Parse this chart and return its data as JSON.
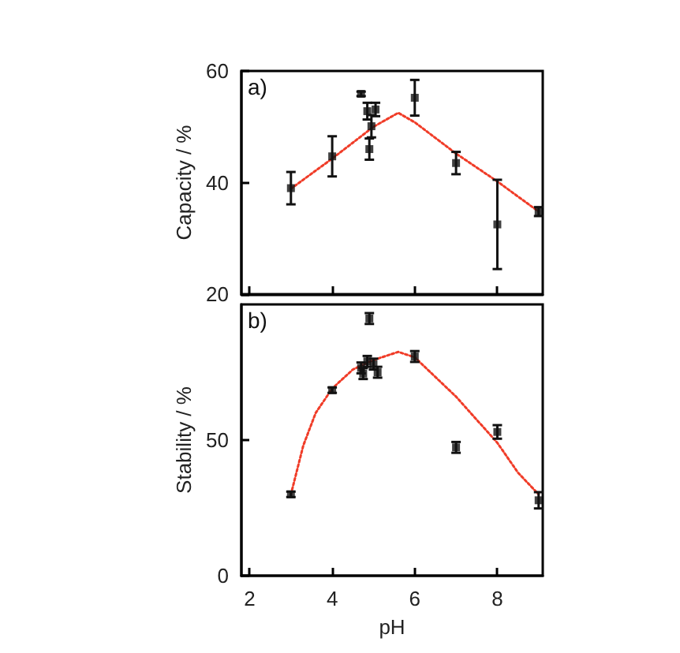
{
  "chart_data": [
    {
      "type": "scatter",
      "ylabel": "Capacity / %",
      "annotations": [
        "a)"
      ],
      "xlim": [
        1.8,
        9.1
      ],
      "xticks": [
        2,
        4,
        6,
        8
      ],
      "ylim": [
        20,
        60
      ],
      "yticks": [
        20,
        40,
        60
      ],
      "tick_labels": "y",
      "marker": "square",
      "series": [
        {
          "color": "#111111",
          "x": [
            3,
            4,
            4.7,
            4.85,
            4.9,
            4.95,
            5.05,
            6,
            7,
            8,
            9
          ],
          "values": [
            39,
            44.7,
            55.9,
            52.8,
            46,
            50.1,
            53.1,
            55.2,
            43.5,
            32.5,
            34.8
          ],
          "errors": [
            2.9,
            3.6,
            0.4,
            1.5,
            1.9,
            2,
            1.2,
            3.2,
            2,
            8,
            0.8
          ]
        },
        {
          "type": "line",
          "color": "#f03c28",
          "marker": "none",
          "line_style": "dotted",
          "x": [
            3,
            4,
            5,
            5.6,
            6,
            7,
            8,
            9
          ],
          "values": [
            38.9,
            44.3,
            50,
            52.5,
            50.8,
            45.2,
            40.2,
            34.8
          ]
        }
      ]
    },
    {
      "type": "scatter",
      "xlabel": "pH",
      "ylabel": "Stability / %",
      "annotations": [
        "b)"
      ],
      "xlim": [
        1.8,
        9.1
      ],
      "xticks": [
        2,
        4,
        6,
        8
      ],
      "ylim": [
        0,
        100
      ],
      "yticks": [
        0,
        50
      ],
      "marker": "square",
      "series": [
        {
          "color": "#111111",
          "x": [
            3,
            4,
            4.7,
            4.75,
            4.85,
            4.9,
            5.0,
            5.1,
            6,
            7,
            8,
            9
          ],
          "values": [
            30,
            68.4,
            76.6,
            74.5,
            79,
            94.8,
            78,
            75,
            80.8,
            47.3,
            53,
            27.8
          ],
          "errors": [
            1,
            1,
            2,
            2,
            2,
            2,
            2,
            2,
            2,
            2,
            2.5,
            3
          ]
        },
        {
          "type": "line",
          "color": "#f03c28",
          "marker": "none",
          "line_style": "dotted",
          "x": [
            3,
            3.3,
            3.6,
            4,
            4.5,
            5,
            5.6,
            6,
            7,
            8,
            8.5,
            9
          ],
          "values": [
            30,
            48,
            60,
            69,
            76,
            79.5,
            82.5,
            80.5,
            66,
            49,
            38,
            30
          ]
        }
      ]
    }
  ]
}
